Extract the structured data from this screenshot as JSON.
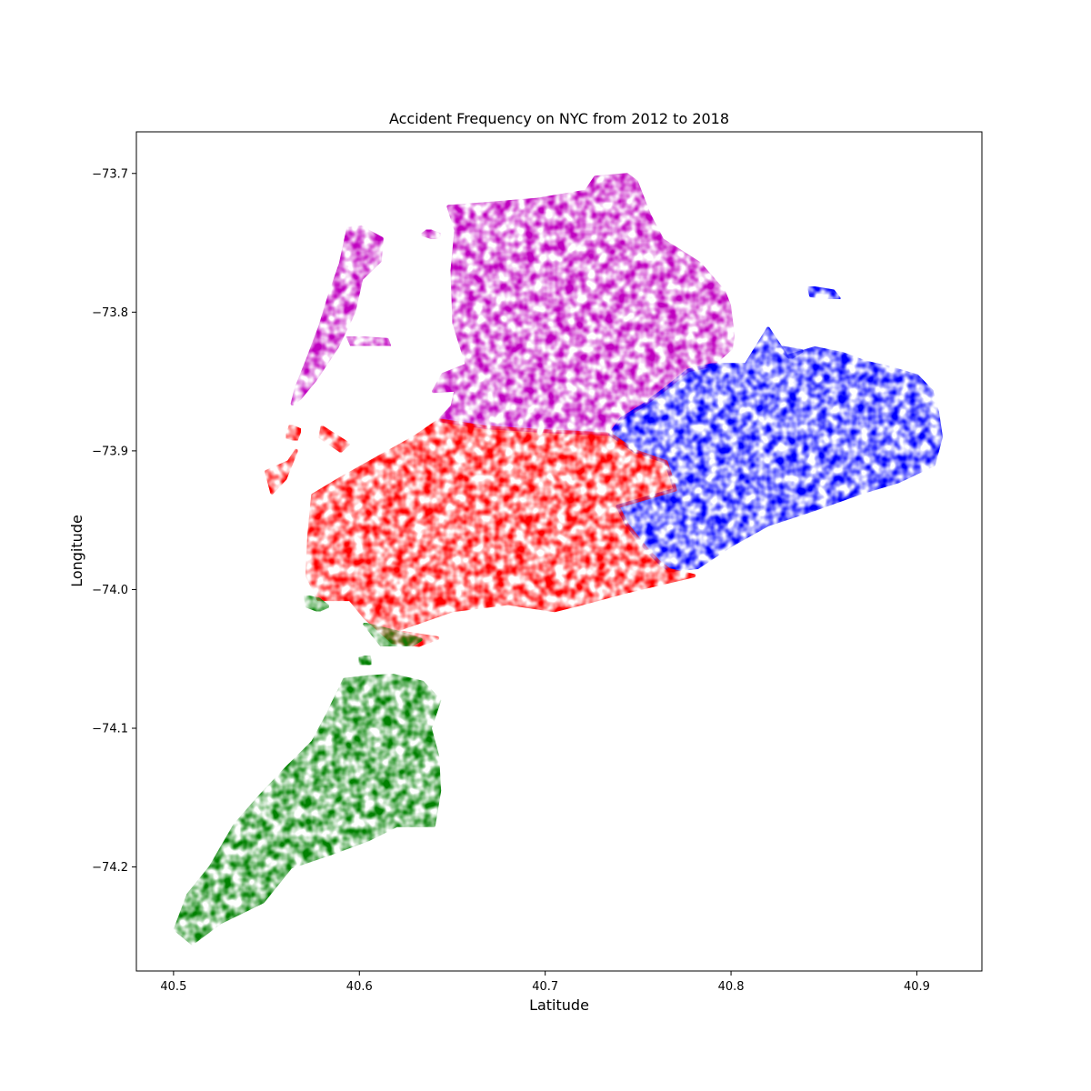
{
  "chart_data": {
    "type": "scatter",
    "title": "Accident Frequency on NYC from 2012 to 2018",
    "xlabel": "Latitude",
    "ylabel": "Longitude",
    "xlim": [
      40.48,
      40.935
    ],
    "ylim": [
      -74.275,
      -73.67
    ],
    "xticks": [
      40.5,
      40.6,
      40.7,
      40.8,
      40.9
    ],
    "xtick_labels": [
      "40.5",
      "40.6",
      "40.7",
      "40.8",
      "40.9"
    ],
    "yticks": [
      -73.7,
      -73.8,
      -73.9,
      -74.0,
      -74.1,
      -74.2
    ],
    "ytick_labels": [
      "−73.7",
      "−73.8",
      "−73.9",
      "−74.0",
      "−74.1",
      "−74.2"
    ],
    "grid": false,
    "series": [
      {
        "color": "#bf00bf",
        "regions": [
          [
            [
              40.648,
              -73.724
            ],
            [
              40.668,
              -73.722
            ],
            [
              40.695,
              -73.719
            ],
            [
              40.722,
              -73.713
            ],
            [
              40.727,
              -73.703
            ],
            [
              40.744,
              -73.701
            ],
            [
              40.749,
              -73.706
            ],
            [
              40.756,
              -73.73
            ],
            [
              40.763,
              -73.748
            ],
            [
              40.783,
              -73.765
            ],
            [
              40.796,
              -73.785
            ],
            [
              40.799,
              -73.795
            ],
            [
              40.801,
              -73.817
            ],
            [
              40.8,
              -73.826
            ],
            [
              40.79,
              -73.838
            ],
            [
              40.777,
              -73.842
            ],
            [
              40.765,
              -73.855
            ],
            [
              40.753,
              -73.867
            ],
            [
              40.741,
              -73.877
            ],
            [
              40.735,
              -73.888
            ],
            [
              40.72,
              -73.887
            ],
            [
              40.702,
              -73.886
            ],
            [
              40.668,
              -73.883
            ],
            [
              40.643,
              -73.878
            ],
            [
              40.65,
              -73.868
            ],
            [
              40.652,
              -73.856
            ],
            [
              40.64,
              -73.857
            ],
            [
              40.645,
              -73.845
            ],
            [
              40.658,
              -73.838
            ],
            [
              40.651,
              -73.808
            ],
            [
              40.65,
              -73.77
            ],
            [
              40.652,
              -73.741
            ]
          ],
          [
            [
              40.594,
              -73.74
            ],
            [
              40.601,
              -73.739
            ],
            [
              40.612,
              -73.747
            ],
            [
              40.611,
              -73.763
            ],
            [
              40.601,
              -73.776
            ],
            [
              40.597,
              -73.8
            ],
            [
              40.588,
              -73.825
            ],
            [
              40.576,
              -73.849
            ],
            [
              40.568,
              -73.862
            ],
            [
              40.564,
              -73.866
            ],
            [
              40.566,
              -73.855
            ],
            [
              40.572,
              -73.835
            ],
            [
              40.579,
              -73.81
            ],
            [
              40.584,
              -73.788
            ],
            [
              40.59,
              -73.765
            ]
          ],
          [
            [
              40.594,
              -73.818
            ],
            [
              40.615,
              -73.82
            ],
            [
              40.616,
              -73.824
            ],
            [
              40.596,
              -73.824
            ]
          ],
          [
            [
              40.637,
              -73.741
            ],
            [
              40.643,
              -73.744
            ],
            [
              40.641,
              -73.747
            ],
            [
              40.634,
              -73.744
            ]
          ]
        ]
      },
      {
        "color": "#0000ff",
        "regions": [
          [
            [
              40.735,
              -73.888
            ],
            [
              40.741,
              -73.877
            ],
            [
              40.753,
              -73.867
            ],
            [
              40.765,
              -73.855
            ],
            [
              40.777,
              -73.842
            ],
            [
              40.79,
              -73.838
            ],
            [
              40.808,
              -73.838
            ],
            [
              40.82,
              -73.812
            ],
            [
              40.83,
              -73.832
            ],
            [
              40.845,
              -73.826
            ],
            [
              40.86,
              -73.83
            ],
            [
              40.872,
              -73.836
            ],
            [
              40.885,
              -73.84
            ],
            [
              40.9,
              -73.846
            ],
            [
              40.908,
              -73.857
            ],
            [
              40.911,
              -73.872
            ],
            [
              40.913,
              -73.89
            ],
            [
              40.909,
              -73.91
            ],
            [
              40.89,
              -73.922
            ],
            [
              40.87,
              -73.93
            ],
            [
              40.845,
              -73.942
            ],
            [
              40.82,
              -73.953
            ],
            [
              40.8,
              -73.968
            ],
            [
              40.782,
              -73.984
            ],
            [
              40.767,
              -73.986
            ],
            [
              40.761,
              -73.98
            ],
            [
              40.754,
              -73.97
            ],
            [
              40.744,
              -73.953
            ],
            [
              40.739,
              -73.94
            ],
            [
              40.752,
              -73.935
            ],
            [
              40.77,
              -73.928
            ],
            [
              40.765,
              -73.908
            ],
            [
              40.748,
              -73.9
            ]
          ],
          [
            [
              40.842,
              -73.782
            ],
            [
              40.855,
              -73.785
            ],
            [
              40.858,
              -73.79
            ],
            [
              40.843,
              -73.788
            ]
          ],
          [
            [
              40.825,
              -73.825
            ],
            [
              40.838,
              -73.828
            ],
            [
              40.832,
              -73.833
            ]
          ]
        ]
      },
      {
        "color": "#ff0000",
        "regions": [
          [
            [
              40.643,
              -73.878
            ],
            [
              40.668,
              -73.883
            ],
            [
              40.702,
              -73.886
            ],
            [
              40.72,
              -73.887
            ],
            [
              40.735,
              -73.888
            ],
            [
              40.748,
              -73.9
            ],
            [
              40.765,
              -73.908
            ],
            [
              40.77,
              -73.928
            ],
            [
              40.752,
              -73.935
            ],
            [
              40.739,
              -73.94
            ],
            [
              40.744,
              -73.953
            ],
            [
              40.754,
              -73.97
            ],
            [
              40.761,
              -73.98
            ],
            [
              40.767,
              -73.986
            ],
            [
              40.78,
              -73.99
            ],
            [
              40.745,
              -74.001
            ],
            [
              40.72,
              -74.01
            ],
            [
              40.705,
              -74.015
            ],
            [
              40.68,
              -74.01
            ],
            [
              40.65,
              -74.015
            ],
            [
              40.618,
              -74.03
            ],
            [
              40.642,
              -74.035
            ],
            [
              40.632,
              -74.04
            ],
            [
              40.618,
              -74.038
            ],
            [
              40.603,
              -74.02
            ],
            [
              40.595,
              -74.007
            ],
            [
              40.578,
              -74.007
            ],
            [
              40.572,
              -73.99
            ],
            [
              40.573,
              -73.96
            ],
            [
              40.575,
              -73.932
            ],
            [
              40.59,
              -73.92
            ],
            [
              40.61,
              -73.905
            ],
            [
              40.63,
              -73.89
            ]
          ],
          [
            [
              40.55,
              -73.915
            ],
            [
              40.562,
              -73.908
            ],
            [
              40.566,
              -73.9
            ],
            [
              40.56,
              -73.92
            ],
            [
              40.553,
              -73.93
            ]
          ],
          [
            [
              40.563,
              -73.882
            ],
            [
              40.568,
              -73.885
            ],
            [
              40.566,
              -73.892
            ],
            [
              40.561,
              -73.89
            ]
          ],
          [
            [
              40.58,
              -73.883
            ],
            [
              40.594,
              -73.895
            ],
            [
              40.59,
              -73.9
            ],
            [
              40.579,
              -73.89
            ]
          ]
        ]
      },
      {
        "color": "#008000",
        "regions": [
          [
            [
              40.571,
              -74.005
            ],
            [
              40.578,
              -74.007
            ],
            [
              40.583,
              -74.012
            ],
            [
              40.578,
              -74.015
            ],
            [
              40.572,
              -74.012
            ]
          ],
          [
            [
              40.603,
              -74.025
            ],
            [
              40.618,
              -74.03
            ],
            [
              40.633,
              -74.036
            ],
            [
              40.628,
              -74.04
            ],
            [
              40.612,
              -74.04
            ]
          ],
          [
            [
              40.592,
              -74.065
            ],
            [
              40.605,
              -74.063
            ],
            [
              40.618,
              -74.062
            ],
            [
              40.634,
              -74.067
            ],
            [
              40.643,
              -74.08
            ],
            [
              40.638,
              -74.1
            ],
            [
              40.642,
              -74.12
            ],
            [
              40.643,
              -74.145
            ],
            [
              40.64,
              -74.17
            ],
            [
              40.62,
              -74.17
            ],
            [
              40.605,
              -74.18
            ],
            [
              40.585,
              -74.19
            ],
            [
              40.563,
              -74.2
            ],
            [
              40.548,
              -74.225
            ],
            [
              40.525,
              -74.24
            ],
            [
              40.51,
              -74.255
            ],
            [
              40.501,
              -74.245
            ],
            [
              40.508,
              -74.22
            ],
            [
              40.52,
              -74.2
            ],
            [
              40.533,
              -74.17
            ],
            [
              40.546,
              -74.15
            ],
            [
              40.56,
              -74.13
            ],
            [
              40.575,
              -74.11
            ],
            [
              40.583,
              -74.09
            ]
          ],
          [
            [
              40.6,
              -74.05
            ],
            [
              40.605,
              -74.048
            ],
            [
              40.606,
              -74.053
            ],
            [
              40.601,
              -74.054
            ]
          ]
        ]
      }
    ]
  }
}
